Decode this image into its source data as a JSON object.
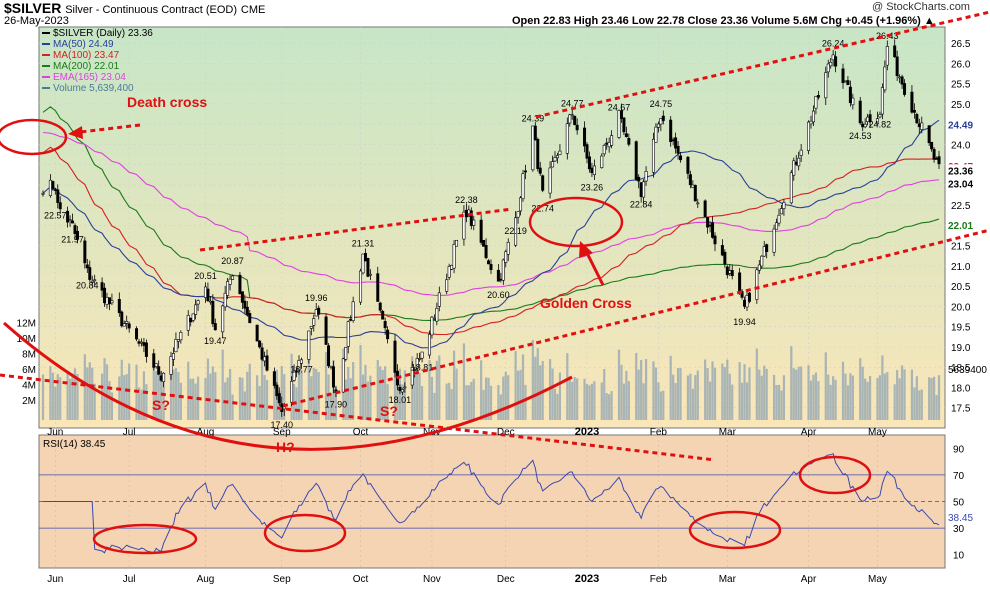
{
  "header": {
    "symbol": "$SILVER",
    "name": "Silver - Continuous Contract (EOD)",
    "exchange": "CME",
    "date": "26-May-2023",
    "brand": "@ StockCharts.com",
    "ohlc_text": "Open 22.83  High 23.46  Low 22.78  Close 23.36  Volume 5.6M  Chg +0.45 (+1.96%) ▲"
  },
  "legend": [
    {
      "text": "$SILVER (Daily) 23.36",
      "color": "#000000"
    },
    {
      "text": "MA(50) 24.49",
      "color": "#2a3f9a"
    },
    {
      "text": "MA(100) 23.47",
      "color": "#d42020"
    },
    {
      "text": "MA(200) 22.01",
      "color": "#1a7a1a"
    },
    {
      "text": "EMA(165) 23.04",
      "color": "#e040e0"
    },
    {
      "text": "Volume 5,639,400",
      "color": "#4a7a9a"
    }
  ],
  "rsi_legend": {
    "text": "RSI(14) 38.45"
  },
  "colors": {
    "price_bg_top": "#c7e6c7",
    "price_bg_bottom": "#fae6b8",
    "rsi_bg": "#f5d4b4",
    "ma50": "#2a3f9a",
    "ma100": "#d42020",
    "ma200": "#1a7a1a",
    "ema165": "#e040e0",
    "volume": "#8fa3b3",
    "annotation": "#e01010",
    "rsi_line": "#3a48b0"
  },
  "annotations": {
    "death_cross": "Death cross",
    "golden_cross": "Golden Cross",
    "s_left": "S?",
    "s_right": "S?",
    "head": "H?"
  },
  "chart_data": [
    {
      "type": "candlestick",
      "title": "$SILVER (Daily) 23.36",
      "x_months": [
        "Jun",
        "Jul",
        "Aug",
        "Sep",
        "Oct",
        "Nov",
        "Dec",
        "2023",
        "Feb",
        "Mar",
        "Apr",
        "May"
      ],
      "ylim": [
        17.0,
        26.9
      ],
      "y_ticks": [
        17.5,
        18.0,
        18.5,
        19.0,
        19.5,
        20.0,
        20.5,
        21.0,
        21.5,
        22.0,
        22.5,
        23.0,
        23.5,
        24.0,
        24.5,
        25.0,
        25.5,
        26.0,
        26.5
      ],
      "volume_ticks": [
        "2M",
        "4M",
        "6M",
        "8M",
        "10M",
        "12M"
      ],
      "price_labels": [
        "22.57",
        "21.97",
        "20.84",
        "20.87",
        "20.51",
        "19.47",
        "21.31",
        "19.96",
        "18.77",
        "17.40",
        "17.90",
        "18.01",
        "18.81",
        "22.38",
        "20.60",
        "22.19",
        "24.39",
        "22.74",
        "24.77",
        "23.26",
        "24.67",
        "22.84",
        "24.75",
        "19.94",
        "26.24",
        "24.53",
        "24.82",
        "26.43"
      ],
      "right_labels": {
        "close": "23.36",
        "ma100": "23.47",
        "ma50": "24.49",
        "ema165": "23.04",
        "ma200": "22.01",
        "volume": "5639400"
      },
      "key_points": [
        {
          "date": "2022-06-01",
          "value": 22.57
        },
        {
          "date": "2022-06-08",
          "value": 21.97
        },
        {
          "date": "2022-06-14",
          "value": 20.84
        },
        {
          "date": "2022-07-14",
          "value": 18.3
        },
        {
          "date": "2022-08-01",
          "value": 20.51
        },
        {
          "date": "2022-08-05",
          "value": 19.47
        },
        {
          "date": "2022-08-12",
          "value": 20.87
        },
        {
          "date": "2022-09-01",
          "value": 17.4
        },
        {
          "date": "2022-09-09",
          "value": 18.77
        },
        {
          "date": "2022-09-15",
          "value": 19.96
        },
        {
          "date": "2022-09-23",
          "value": 17.9
        },
        {
          "date": "2022-10-04",
          "value": 21.31
        },
        {
          "date": "2022-10-19",
          "value": 18.01
        },
        {
          "date": "2022-10-28",
          "value": 18.81
        },
        {
          "date": "2022-11-15",
          "value": 22.38
        },
        {
          "date": "2022-11-28",
          "value": 20.6
        },
        {
          "date": "2022-12-05",
          "value": 22.19
        },
        {
          "date": "2022-12-12",
          "value": 24.39
        },
        {
          "date": "2022-12-16",
          "value": 22.74
        },
        {
          "date": "2022-12-28",
          "value": 24.77
        },
        {
          "date": "2023-01-05",
          "value": 23.26
        },
        {
          "date": "2023-01-16",
          "value": 24.67
        },
        {
          "date": "2023-01-25",
          "value": 22.84
        },
        {
          "date": "2023-02-02",
          "value": 24.75
        },
        {
          "date": "2023-03-08",
          "value": 19.94
        },
        {
          "date": "2023-04-13",
          "value": 26.24
        },
        {
          "date": "2023-04-24",
          "value": 24.53
        },
        {
          "date": "2023-05-02",
          "value": 24.82
        },
        {
          "date": "2023-05-05",
          "value": 26.43
        },
        {
          "date": "2023-05-26",
          "value": 23.36
        }
      ]
    },
    {
      "type": "line",
      "title": "RSI(14) 38.45",
      "ylim": [
        0,
        100
      ],
      "y_ticks": [
        10,
        30,
        50,
        70,
        90
      ],
      "current": 38.45
    }
  ]
}
